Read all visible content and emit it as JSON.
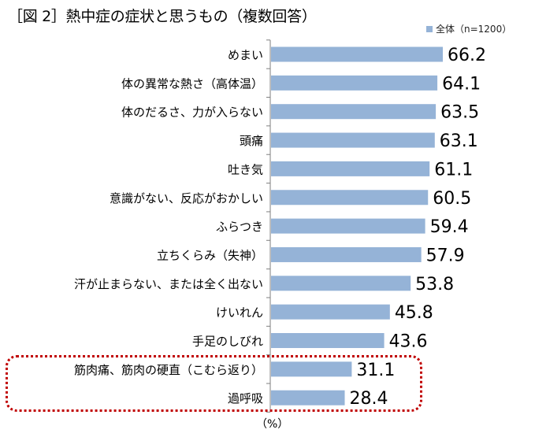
{
  "title": "［図 2］熱中症の症状と思うもの（複数回答）",
  "unit": "（%）",
  "colors": {
    "bar": "#95b3d7",
    "axis": "#7f7f7f",
    "highlight": "#c00000"
  },
  "chart_data": {
    "type": "bar",
    "orientation": "horizontal",
    "categories": [
      "めまい",
      "体の異常な熱さ（高体温）",
      "体のだるさ、力が入らない",
      "頭痛",
      "吐き気",
      "意識がない、反応がおかしい",
      "ふらつき",
      "立ちくらみ（失神）",
      "汗が止まらない、または全く出ない",
      "けいれん",
      "手足のしびれ",
      "筋肉痛、筋肉の硬直（こむら返り）",
      "過呼吸"
    ],
    "series": [
      {
        "name": "全体（n=1200）",
        "values": [
          66.2,
          64.1,
          63.5,
          63.1,
          61.1,
          60.5,
          59.4,
          57.9,
          53.8,
          45.8,
          43.6,
          31.1,
          28.4
        ]
      }
    ],
    "value_labels": [
      "66.2",
      "64.1",
      "63.5",
      "63.1",
      "61.1",
      "60.5",
      "59.4",
      "57.9",
      "53.8",
      "45.8",
      "43.6",
      "31.1",
      "28.4"
    ],
    "legend_position": "top-right",
    "grid": false,
    "highlighted_categories": [
      "筋肉痛、筋肉の硬直（こむら返り）",
      "過呼吸"
    ]
  }
}
